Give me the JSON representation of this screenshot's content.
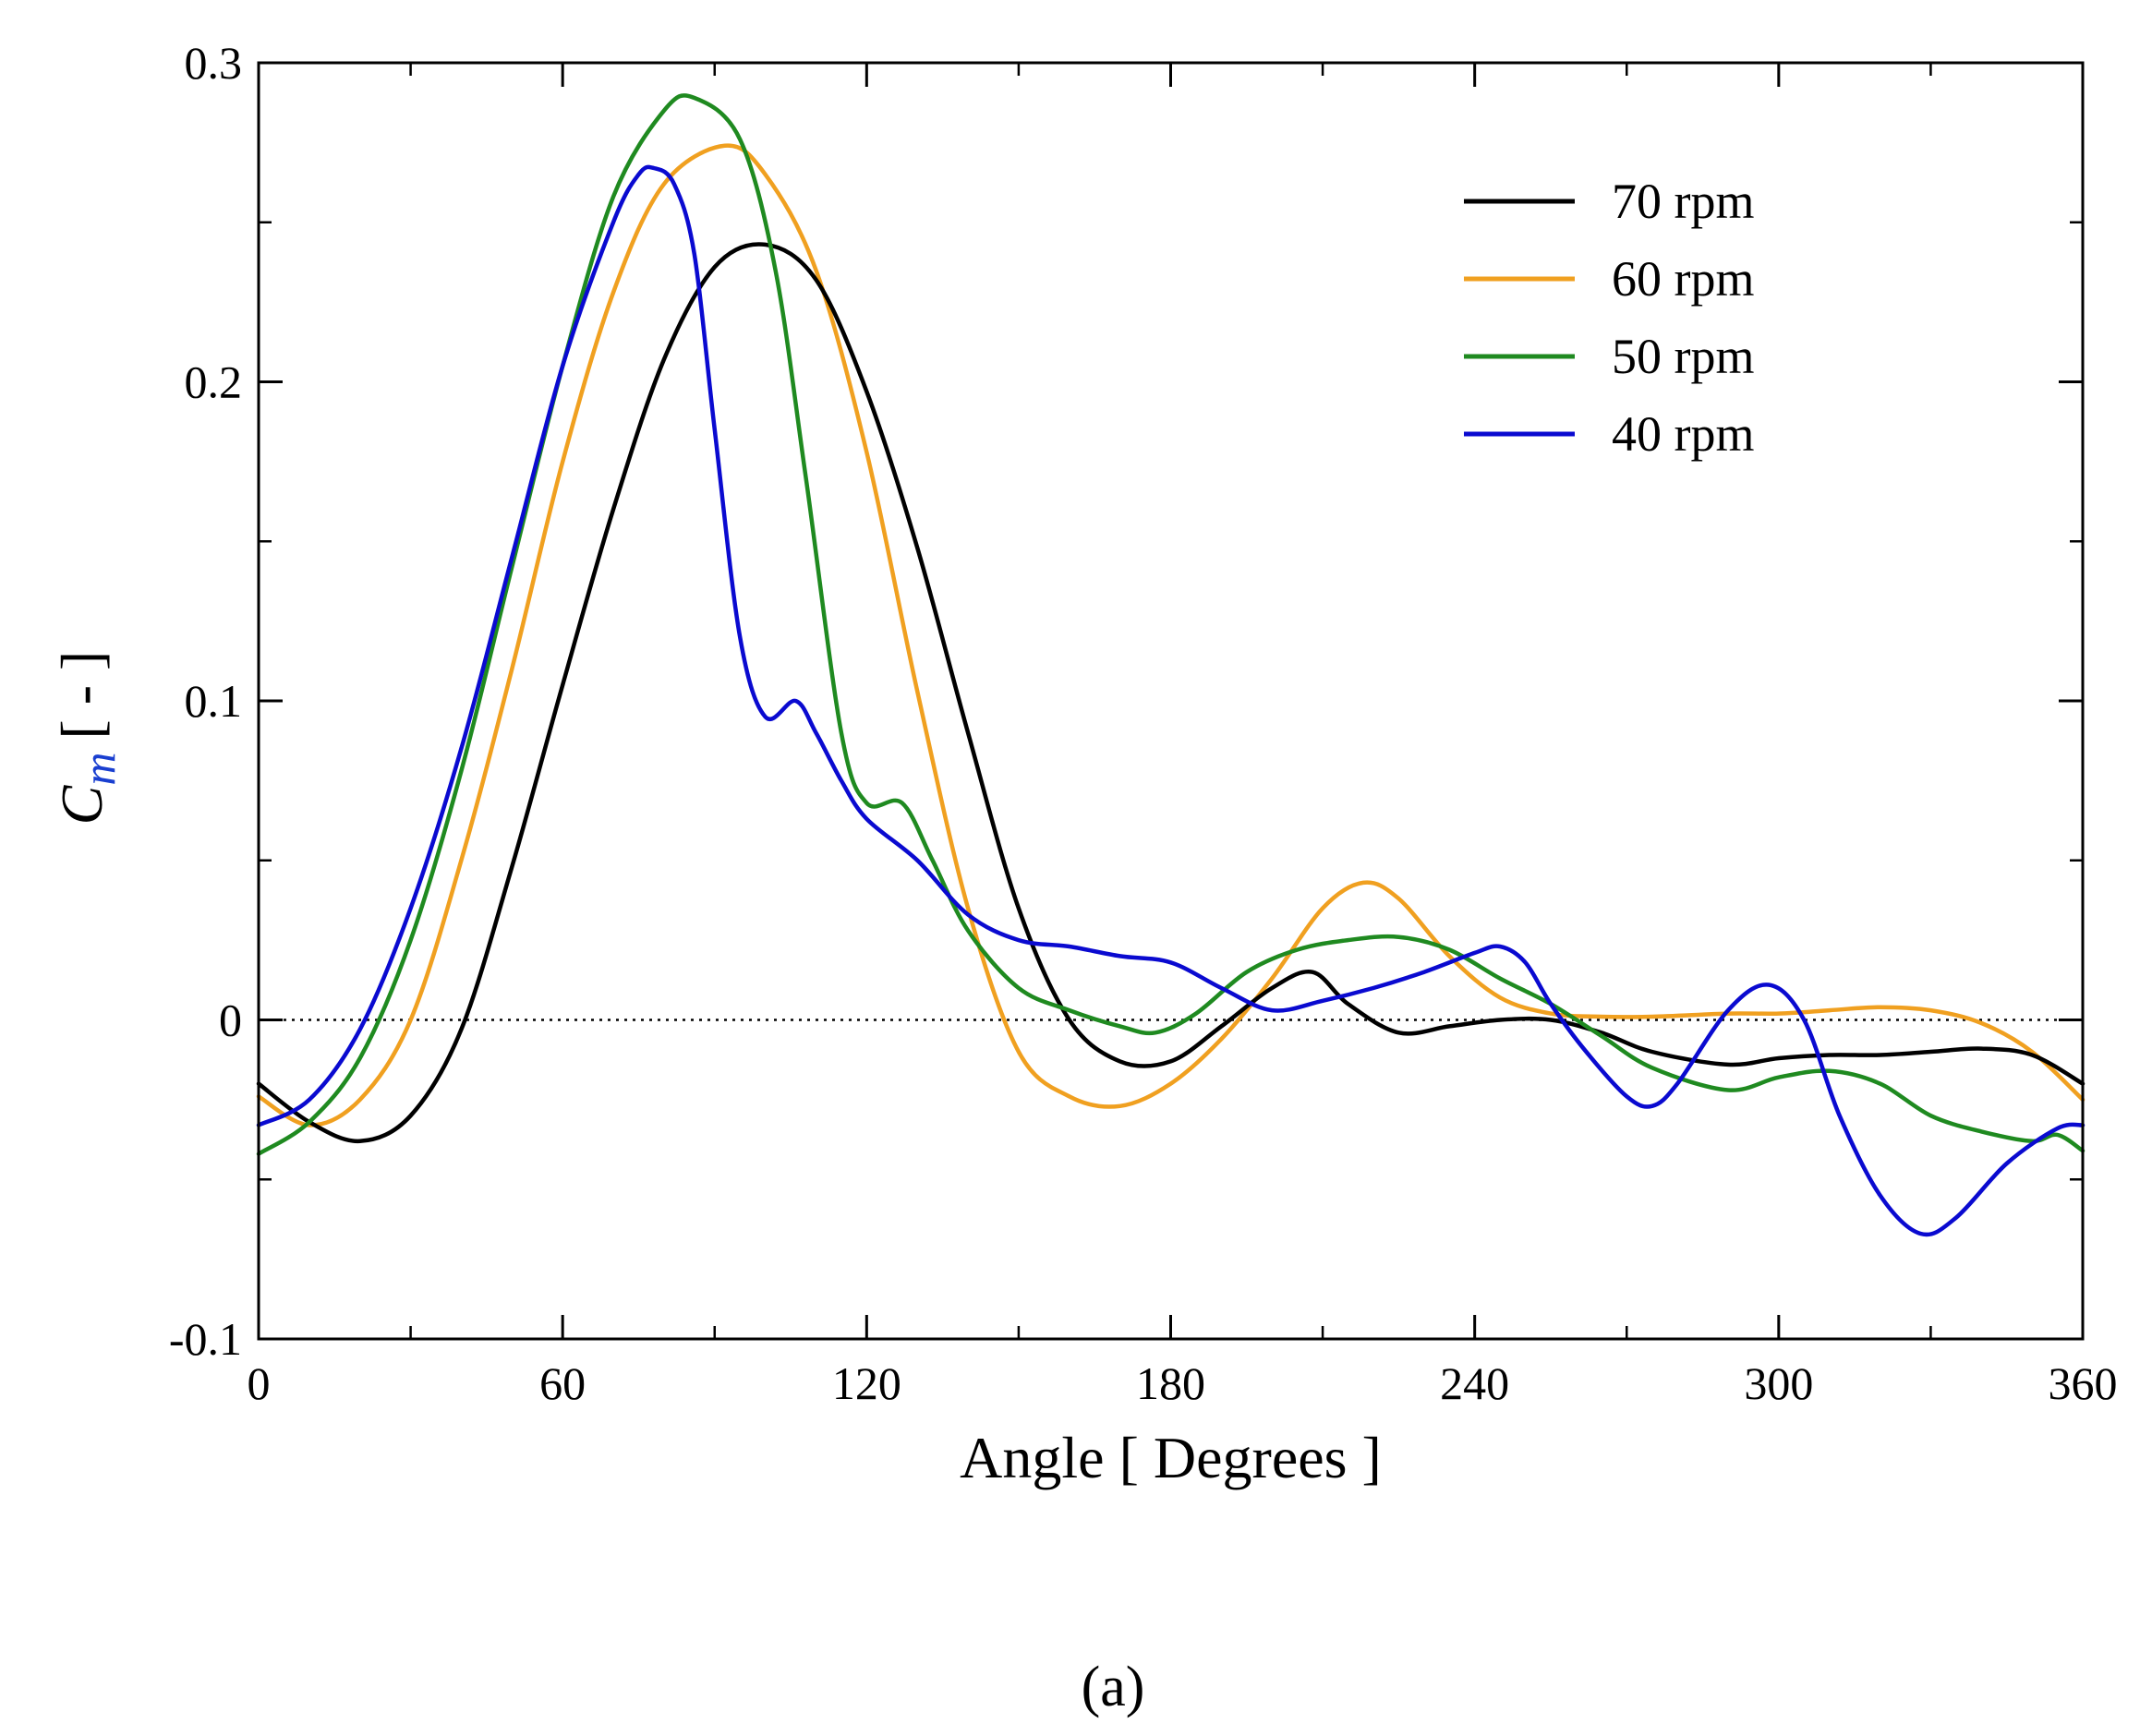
{
  "chart_data": {
    "type": "line",
    "title": "",
    "xlabel": "Angle [ Degrees ]",
    "ylabel_main": "C",
    "ylabel_sub": "m",
    "ylabel_unit": "[ - ]",
    "xlim": [
      0,
      360
    ],
    "ylim": [
      -0.1,
      0.3
    ],
    "xticks": [
      0,
      60,
      120,
      180,
      240,
      300,
      360
    ],
    "xtick_labels": [
      "0",
      "60",
      "120",
      "180",
      "240",
      "300",
      "360"
    ],
    "yticks": [
      -0.1,
      0,
      0.1,
      0.2,
      0.3
    ],
    "ytick_labels": [
      "-0.1",
      "0",
      "0.1",
      "0.2",
      "0.3"
    ],
    "grid": false,
    "zero_line": "dotted",
    "legend_position": "top-right",
    "panel_label": "(a)",
    "series": [
      {
        "name": "70 rpm",
        "color": "#000000",
        "x": [
          0,
          10,
          20,
          30,
          40,
          50,
          60,
          70,
          80,
          90,
          100,
          110,
          120,
          130,
          140,
          150,
          160,
          170,
          180,
          190,
          200,
          208,
          215,
          225,
          235,
          245,
          255,
          265,
          275,
          290,
          300,
          310,
          320,
          330,
          340,
          350,
          360
        ],
        "y": [
          -0.02,
          -0.032,
          -0.038,
          -0.03,
          -0.003,
          0.048,
          0.105,
          0.16,
          0.207,
          0.236,
          0.243,
          0.232,
          0.197,
          0.148,
          0.09,
          0.035,
          0.0,
          -0.013,
          -0.013,
          -0.002,
          0.01,
          0.015,
          0.005,
          -0.004,
          -0.002,
          0.0,
          0.0,
          -0.004,
          -0.01,
          -0.014,
          -0.012,
          -0.011,
          -0.011,
          -0.01,
          -0.009,
          -0.011,
          -0.02
        ]
      },
      {
        "name": "60 rpm",
        "color": "#f0a020",
        "x": [
          0,
          10,
          20,
          30,
          40,
          50,
          60,
          70,
          80,
          92,
          100,
          110,
          120,
          130,
          140,
          150,
          160,
          170,
          180,
          190,
          200,
          210,
          218,
          225,
          235,
          245,
          255,
          265,
          275,
          290,
          300,
          310,
          320,
          330,
          340,
          350,
          360
        ],
        "y": [
          -0.024,
          -0.033,
          -0.025,
          0.0,
          0.05,
          0.11,
          0.175,
          0.228,
          0.262,
          0.274,
          0.265,
          0.235,
          0.178,
          0.103,
          0.035,
          -0.01,
          -0.024,
          -0.027,
          -0.02,
          -0.006,
          0.013,
          0.035,
          0.043,
          0.038,
          0.02,
          0.007,
          0.002,
          0.001,
          0.001,
          0.002,
          0.002,
          0.003,
          0.004,
          0.003,
          -0.001,
          -0.01,
          -0.025
        ]
      },
      {
        "name": "50 rpm",
        "color": "#1f8a20",
        "x": [
          0,
          10,
          20,
          30,
          40,
          50,
          60,
          70,
          80,
          86,
          95,
          102,
          108,
          115,
          120,
          127,
          133,
          140,
          150,
          160,
          170,
          177,
          185,
          195,
          205,
          215,
          225,
          235,
          245,
          255,
          265,
          275,
          290,
          300,
          310,
          320,
          330,
          340,
          350,
          355,
          360
        ],
        "y": [
          -0.042,
          -0.032,
          -0.012,
          0.025,
          0.078,
          0.142,
          0.205,
          0.258,
          0.285,
          0.289,
          0.276,
          0.235,
          0.17,
          0.09,
          0.068,
          0.068,
          0.05,
          0.028,
          0.01,
          0.003,
          -0.002,
          -0.004,
          0.002,
          0.015,
          0.022,
          0.025,
          0.026,
          0.022,
          0.013,
          0.005,
          -0.005,
          -0.015,
          -0.022,
          -0.018,
          -0.016,
          -0.02,
          -0.03,
          -0.035,
          -0.038,
          -0.036,
          -0.041
        ]
      },
      {
        "name": "40 rpm",
        "color": "#0a0ad0",
        "x": [
          0,
          10,
          20,
          30,
          40,
          50,
          60,
          70,
          75,
          78,
          82,
          86,
          90,
          95,
          100,
          106,
          110,
          115,
          120,
          130,
          140,
          150,
          160,
          170,
          180,
          190,
          200,
          210,
          220,
          230,
          240,
          245,
          250,
          255,
          262,
          270,
          275,
          280,
          290,
          298,
          305,
          312,
          320,
          328,
          335,
          345,
          355,
          360
        ],
        "y": [
          -0.033,
          -0.025,
          -0.003,
          0.035,
          0.085,
          0.145,
          0.205,
          0.25,
          0.265,
          0.267,
          0.262,
          0.24,
          0.185,
          0.12,
          0.095,
          0.1,
          0.09,
          0.075,
          0.063,
          0.05,
          0.033,
          0.025,
          0.023,
          0.02,
          0.018,
          0.01,
          0.003,
          0.006,
          0.01,
          0.015,
          0.021,
          0.023,
          0.018,
          0.005,
          -0.01,
          -0.024,
          -0.027,
          -0.02,
          0.003,
          0.011,
          0.0,
          -0.03,
          -0.055,
          -0.067,
          -0.062,
          -0.045,
          -0.034,
          -0.033
        ]
      }
    ]
  }
}
